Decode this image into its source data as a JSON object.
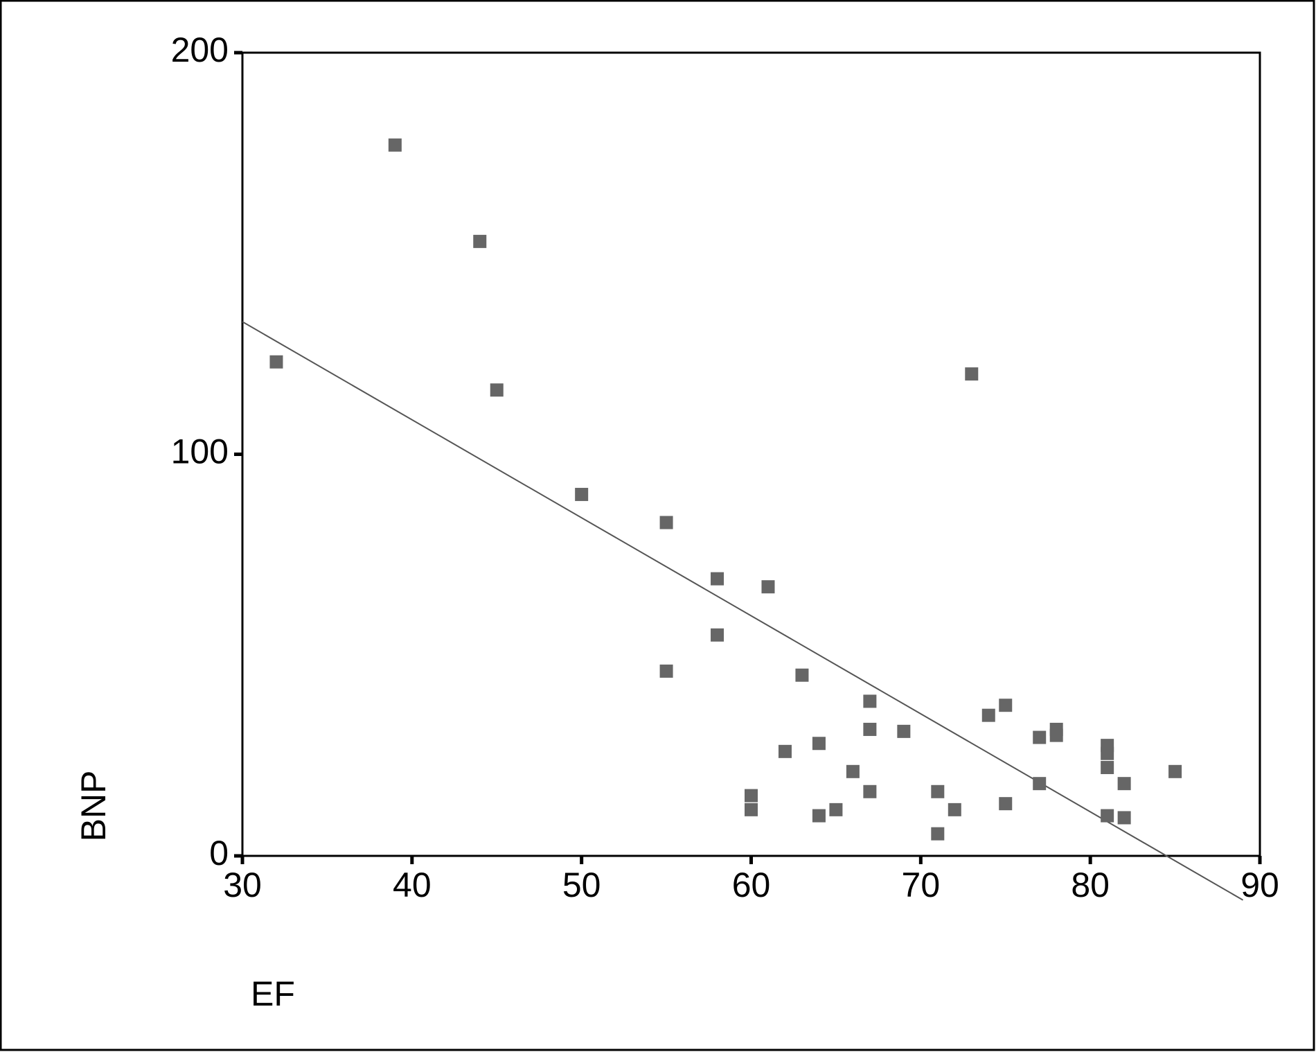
{
  "chart_data": {
    "type": "scatter",
    "x_label": "EF",
    "y_label": "BNP",
    "xlim": [
      30,
      90
    ],
    "xticks": [
      30,
      40,
      50,
      60,
      70,
      80,
      90
    ],
    "ylim": [
      0,
      200
    ],
    "yticks": [
      0,
      100,
      200
    ],
    "series": [
      {
        "color": "#666666",
        "x": [
          32,
          39,
          44,
          45,
          50,
          55,
          55,
          58,
          58,
          61,
          60,
          60,
          62,
          63,
          64,
          64,
          65,
          66,
          67,
          67,
          67,
          69,
          71,
          71,
          72,
          73,
          74,
          75,
          75,
          77,
          77,
          78,
          78,
          81,
          81,
          81,
          81,
          82,
          82,
          85
        ],
        "values": [
          123,
          177,
          153,
          116,
          90,
          83,
          46,
          69,
          55,
          67,
          15,
          11.5,
          26,
          45,
          28,
          10,
          11.5,
          21,
          38.5,
          31.5,
          16,
          31,
          16,
          5.5,
          11.5,
          120,
          35,
          37.5,
          13,
          29.5,
          18,
          31.5,
          30,
          27.5,
          25.5,
          22,
          10,
          18,
          9.5,
          21
        ]
      }
    ],
    "fit_line": {
      "color": "#555555",
      "x": [
        30,
        89
      ],
      "values": [
        133,
        -11
      ]
    }
  }
}
